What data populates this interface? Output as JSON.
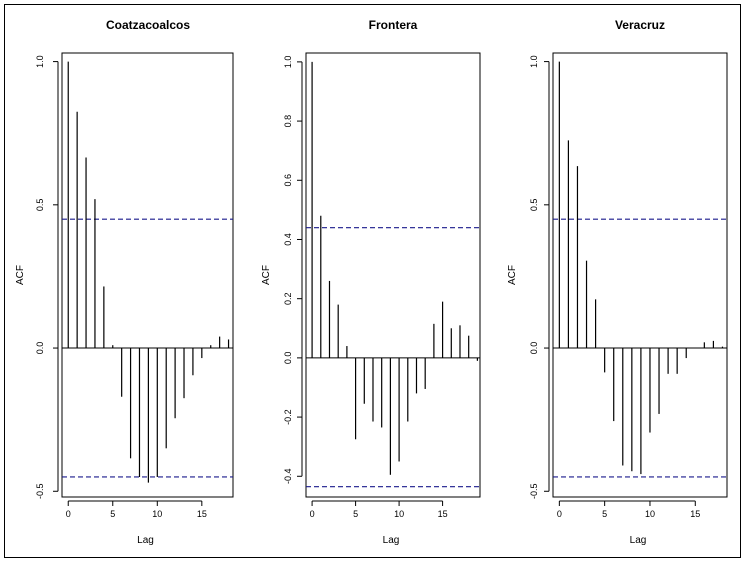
{
  "colors": {
    "bar": "#000000",
    "ci_line": "#1a1a8c",
    "frame": "#000000"
  },
  "chart_data": [
    {
      "type": "bar",
      "title": "Coatzacoalcos",
      "xlabel": "Lag",
      "ylabel": "ACF",
      "xlim": [
        -0.7,
        18.5
      ],
      "ylim": [
        -0.52,
        1.03
      ],
      "xticks": [
        0,
        5,
        10,
        15
      ],
      "xtick_labels": [
        "0",
        "5",
        "10",
        "15"
      ],
      "yticks": [
        -0.5,
        0.0,
        0.5,
        1.0
      ],
      "ytick_labels": [
        "-0.5",
        "0.0",
        "0.5",
        "1.0"
      ],
      "ci": [
        0.45,
        -0.45
      ],
      "lags": [
        0,
        1,
        2,
        3,
        4,
        5,
        6,
        7,
        8,
        9,
        10,
        11,
        12,
        13,
        14,
        15,
        16,
        17,
        18
      ],
      "values": [
        1.0,
        0.825,
        0.665,
        0.52,
        0.215,
        0.01,
        -0.17,
        -0.385,
        -0.45,
        -0.47,
        -0.45,
        -0.35,
        -0.245,
        -0.175,
        -0.095,
        -0.035,
        0.01,
        0.04,
        0.03
      ]
    },
    {
      "type": "bar",
      "title": "Frontera",
      "xlabel": "Lag",
      "ylabel": "ACF",
      "xlim": [
        -0.7,
        19.3
      ],
      "ylim": [
        -0.47,
        1.03
      ],
      "xticks": [
        0,
        5,
        10,
        15
      ],
      "xtick_labels": [
        "0",
        "5",
        "10",
        "15"
      ],
      "yticks": [
        -0.4,
        -0.2,
        0.0,
        0.2,
        0.4,
        0.6,
        0.8,
        1.0
      ],
      "ytick_labels": [
        "-0.4",
        "-0.2",
        "0.0",
        "0.2",
        "0.4",
        "0.6",
        "0.8",
        "1.0"
      ],
      "ci": [
        0.44,
        -0.435
      ],
      "lags": [
        0,
        1,
        2,
        3,
        4,
        5,
        6,
        7,
        8,
        9,
        10,
        11,
        12,
        13,
        14,
        15,
        16,
        17,
        18,
        19
      ],
      "values": [
        1.0,
        0.48,
        0.26,
        0.18,
        0.04,
        -0.275,
        -0.155,
        -0.215,
        -0.235,
        -0.395,
        -0.35,
        -0.215,
        -0.12,
        -0.105,
        0.115,
        0.19,
        0.1,
        0.11,
        0.075,
        -0.01
      ]
    },
    {
      "type": "bar",
      "title": "Veracruz",
      "xlabel": "Lag",
      "ylabel": "ACF",
      "xlim": [
        -0.7,
        18.5
      ],
      "ylim": [
        -0.52,
        1.03
      ],
      "xticks": [
        0,
        5,
        10,
        15
      ],
      "xtick_labels": [
        "0",
        "5",
        "10",
        "15"
      ],
      "yticks": [
        -0.5,
        0.0,
        0.5,
        1.0
      ],
      "ytick_labels": [
        "-0.5",
        "0.0",
        "0.5",
        "1.0"
      ],
      "ci": [
        0.45,
        -0.45
      ],
      "lags": [
        0,
        1,
        2,
        3,
        4,
        5,
        6,
        7,
        8,
        9,
        10,
        11,
        12,
        13,
        14,
        15,
        16,
        17,
        18
      ],
      "values": [
        1.0,
        0.725,
        0.635,
        0.305,
        0.17,
        -0.085,
        -0.255,
        -0.41,
        -0.43,
        -0.44,
        -0.295,
        -0.23,
        -0.09,
        -0.09,
        -0.035,
        0.0,
        0.02,
        0.025,
        0.005
      ]
    }
  ]
}
